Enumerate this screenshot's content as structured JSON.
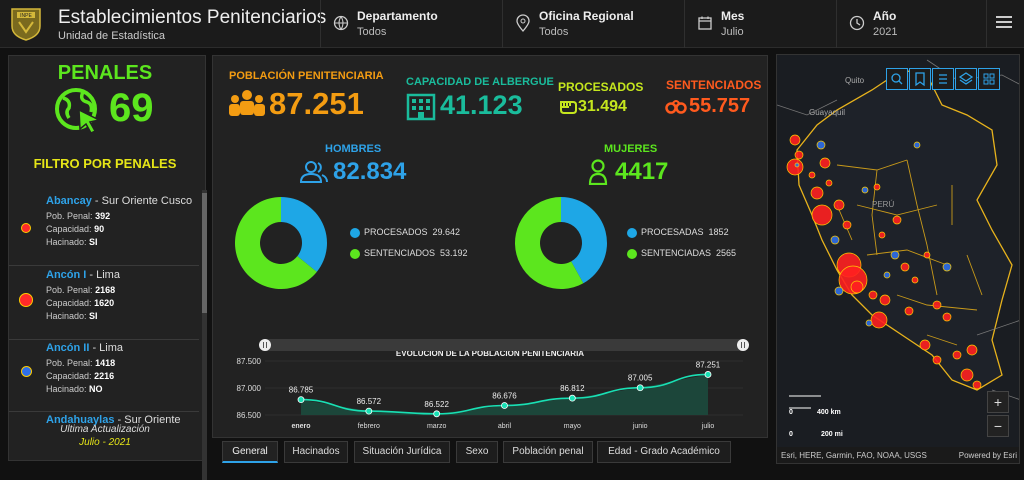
{
  "header": {
    "title": "Establecimientos Penitenciarios",
    "subtitle": "Unidad de Estadística",
    "logo_text": "INPE",
    "filters": [
      {
        "label": "Departamento",
        "value": "Todos",
        "icon": "globe-icon"
      },
      {
        "label": "Oficina Regional",
        "value": "Todos",
        "icon": "location-pin-icon"
      },
      {
        "label": "Mes",
        "value": "Julio",
        "icon": "calendar-icon"
      },
      {
        "label": "Año",
        "value": "2021",
        "icon": "clock-icon"
      }
    ]
  },
  "sidebar": {
    "title": "PENALES",
    "count": "69",
    "filter_title": "FILTRO POR PENALES",
    "items": [
      {
        "name": "Abancay",
        "region": " - Sur Oriente Cusco",
        "pob_label": "Pob. Penal:",
        "pob": "392",
        "cap_label": "Capacidad:",
        "cap": "90",
        "hac_label": "Hacinado:",
        "hac": "SI",
        "color": "#ff2a2a"
      },
      {
        "name": "Ancón I",
        "region": " - Lima",
        "pob_label": "Pob. Penal:",
        "pob": "2168",
        "cap_label": "Capacidad:",
        "cap": "1620",
        "hac_label": "Hacinado:",
        "hac": "SI",
        "color": "#ff2a2a"
      },
      {
        "name": "Ancón II",
        "region": " - Lima",
        "pob_label": "Pob. Penal:",
        "pob": "1418",
        "cap_label": "Capacidad:",
        "cap": "2216",
        "hac_label": "Hacinado:",
        "hac": "NO",
        "color": "#2f6fe8"
      },
      {
        "name": "Andahuaylas",
        "region": " - Sur Oriente"
      }
    ],
    "update_label": "Ultima Actualización",
    "update_value": "Julio - 2021"
  },
  "kpis": {
    "poblacion": {
      "label": "POBLACIÓN PENITENCIARIA",
      "value": "87.251",
      "color": "#f39c12"
    },
    "capacidad": {
      "label": "CAPACIDAD DE ALBERGUE",
      "value": "41.123",
      "color": "#1abc9c"
    },
    "procesados": {
      "label": "PROCESADOS",
      "value": "31.494",
      "color": "#c5e61e"
    },
    "sentenciados": {
      "label": "SENTENCIADOS",
      "value": "55.757",
      "color": "#ff5a1e"
    }
  },
  "hombres": {
    "label": "HOMBRES",
    "value": "82.834",
    "donut": [
      {
        "name": "PROCESADOS",
        "value": "29.642",
        "num": 29642,
        "color": "#1ea7e6"
      },
      {
        "name": "SENTENCIADOS",
        "value": "53.192",
        "num": 53192,
        "color": "#5ce61e"
      }
    ]
  },
  "mujeres": {
    "label": "MUJERES",
    "value": "4417",
    "donut": [
      {
        "name": "PROCESADAS",
        "value": "1852",
        "num": 1852,
        "color": "#1ea7e6"
      },
      {
        "name": "SENTENCIADAS",
        "value": "2565",
        "num": 2565,
        "color": "#5ce61e"
      }
    ]
  },
  "chart_data": {
    "type": "area",
    "title": "EVOLUCIÓN DE LA POBLACIÓN PENITENCIARIA",
    "categories": [
      "enero",
      "febrero",
      "marzo",
      "abril",
      "mayo",
      "junio",
      "julio"
    ],
    "values": [
      86785,
      86572,
      86522,
      86676,
      86812,
      87005,
      87251
    ],
    "value_labels": [
      "86.785",
      "86.572",
      "86.522",
      "86.676",
      "86.812",
      "87.005",
      "87.251"
    ],
    "y_ticks": [
      86500,
      87000,
      87500
    ],
    "y_tick_labels": [
      "86.500",
      "87.000",
      "87.500"
    ],
    "ylim": [
      86500,
      87500
    ],
    "color": "#19e0b4"
  },
  "tabs": [
    "General",
    "Hacinados",
    "Situación Jurídica",
    "Sexo",
    "Población penal",
    "Edad - Grado Académico"
  ],
  "map": {
    "labels": [
      "Quito",
      "Guayaquil",
      "PERÚ"
    ],
    "scale_km": "400 km",
    "scale_mi": "200 mi",
    "scale_zero": "0",
    "attribution": "Esri, HERE, Garmin, FAO, NOAA, USGS",
    "powered": "Powered by Esri",
    "zoom_in": "+",
    "zoom_out": "−",
    "tools": [
      "search-icon",
      "bookmark-icon",
      "list-icon",
      "layers-icon",
      "basemap-icon"
    ]
  }
}
